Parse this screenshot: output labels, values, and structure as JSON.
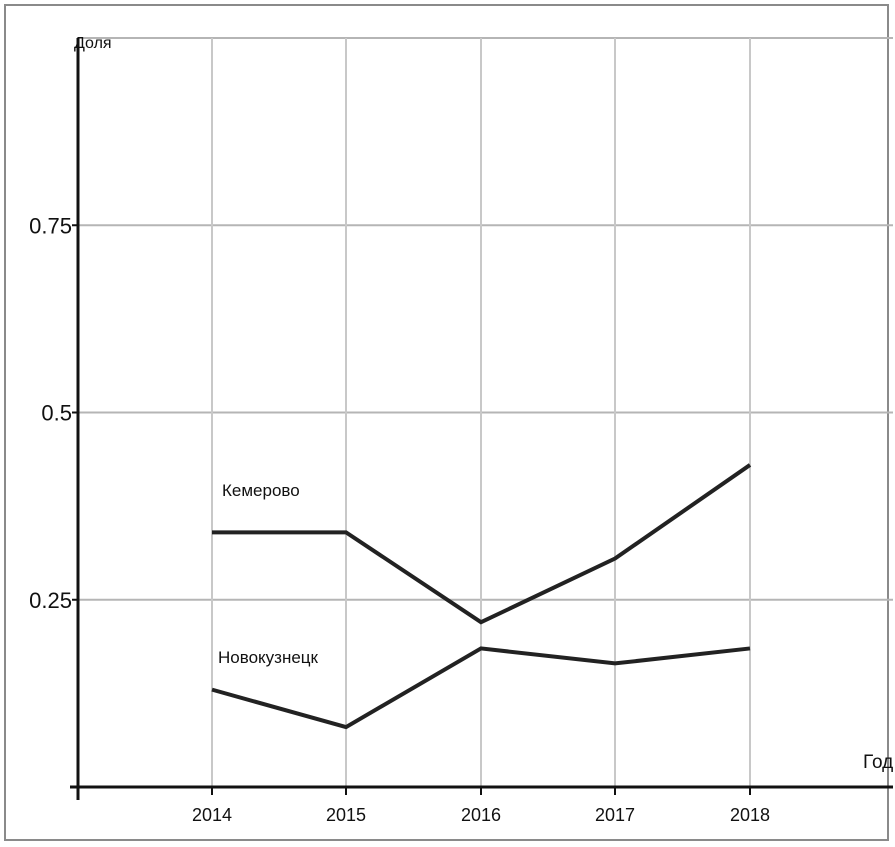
{
  "chart_data": {
    "type": "line",
    "title": "",
    "ylabel": "Доля",
    "xlabel": "Год",
    "categories": [
      "2014",
      "2015",
      "2016",
      "2017",
      "2018"
    ],
    "ylim": [
      0,
      1
    ],
    "yticks": [
      0.25,
      0.5,
      0.75
    ],
    "ytick_labels": [
      "0.25",
      "0.5",
      "0.75"
    ],
    "grid": true,
    "legend": "inline labels",
    "series": [
      {
        "name": "Кемерово",
        "values": [
          0.34,
          0.34,
          0.22,
          0.305,
          0.43
        ],
        "color": "#222222"
      },
      {
        "name": "Новокузнецк",
        "values": [
          0.13,
          0.08,
          0.185,
          0.165,
          0.185
        ],
        "color": "#222222"
      }
    ]
  }
}
